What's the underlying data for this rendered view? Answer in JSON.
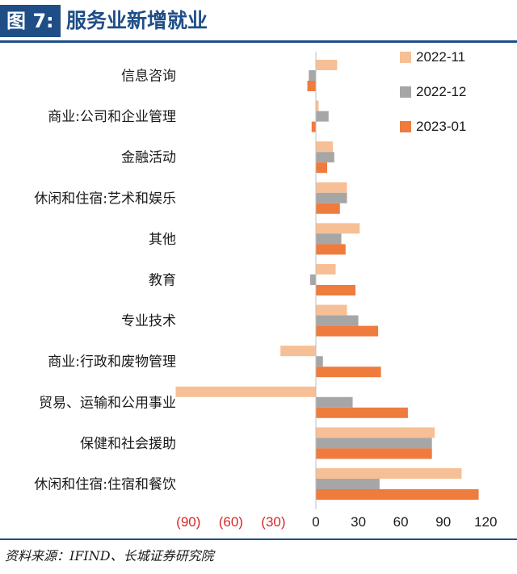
{
  "header": {
    "figure_label": "图 7:",
    "title": "服务业新增就业"
  },
  "source": "资料来源：IFIND、长城证券研究院",
  "colors": {
    "brand": "#1f4e87",
    "negative_tick": "#d62728"
  },
  "chart_data": {
    "type": "bar",
    "orientation": "horizontal",
    "title": "服务业新增就业",
    "categories": [
      "信息咨询",
      "商业:公司和企业管理",
      "金融活动",
      "休闲和住宿:艺术和娱乐",
      "其他",
      "教育",
      "专业技术",
      "商业:行政和废物管理",
      "贸易、运输和公用事业",
      "保健和社会援助",
      "休闲和住宿:住宿和餐饮"
    ],
    "series": [
      {
        "name": "2022-11",
        "color": "#f7bf96",
        "values": [
          15,
          2,
          12,
          22,
          31,
          14,
          22,
          -25,
          -99,
          84,
          103
        ]
      },
      {
        "name": "2022-12",
        "color": "#a6a6a6",
        "values": [
          -5,
          9,
          13,
          22,
          18,
          -4,
          30,
          5,
          26,
          82,
          45
        ]
      },
      {
        "name": "2023-01",
        "color": "#ef7b3d",
        "values": [
          -6,
          -3,
          8,
          17,
          21,
          28,
          44,
          46,
          65,
          82,
          115
        ]
      }
    ],
    "xlim": [
      -90,
      120
    ],
    "xticks": [
      -90,
      -60,
      -30,
      0,
      30,
      60,
      90,
      120
    ],
    "xtick_labels": [
      "(90)",
      "(60)",
      "(30)",
      "0",
      "30",
      "60",
      "90",
      "120"
    ],
    "grid": false,
    "legend_position": "top-right"
  }
}
